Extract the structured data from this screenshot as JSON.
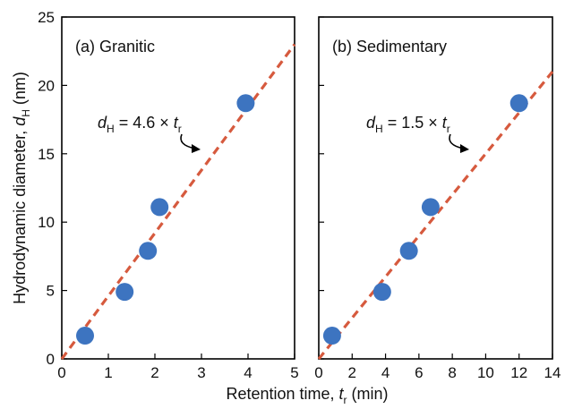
{
  "chart_data": [
    {
      "type": "scatter",
      "panel_label": "(a) Granitic",
      "x": [
        0.5,
        1.35,
        1.85,
        2.1,
        3.95
      ],
      "y": [
        1.7,
        4.9,
        7.9,
        11.1,
        18.7
      ],
      "xlim": [
        0,
        5
      ],
      "ylim": [
        0,
        25
      ],
      "xticks": [
        0,
        1,
        2,
        3,
        4,
        5
      ],
      "yticks": [
        0,
        5,
        10,
        15,
        20,
        25
      ],
      "fit": {
        "slope": 4.6,
        "equation_lhs": "d",
        "equation_lhs_sub": "H",
        "equation_mid": " = 4.6 × ",
        "equation_rhs": "t",
        "equation_rhs_sub": "r"
      },
      "colors": {
        "points": "#3d74c0",
        "fit_line": "#d65a3e"
      }
    },
    {
      "type": "scatter",
      "panel_label": "(b) Sedimentary",
      "x": [
        0.8,
        3.8,
        5.4,
        6.7,
        12.0
      ],
      "y": [
        1.7,
        4.9,
        7.9,
        11.1,
        18.7
      ],
      "xlim": [
        0,
        14
      ],
      "ylim": [
        0,
        25
      ],
      "xticks": [
        0,
        2,
        4,
        6,
        8,
        10,
        12,
        14
      ],
      "yticks": [],
      "fit": {
        "slope": 1.5,
        "equation_lhs": "d",
        "equation_lhs_sub": "H",
        "equation_mid": " = 1.5 × ",
        "equation_rhs": "t",
        "equation_rhs_sub": "r"
      },
      "colors": {
        "points": "#3d74c0",
        "fit_line": "#d65a3e"
      }
    }
  ],
  "axes": {
    "ylabel_main": "Hydrodynamic diameter, ",
    "ylabel_var": "d",
    "ylabel_sub": "H",
    "ylabel_unit": " (nm)",
    "xlabel_main": "Retention time, ",
    "xlabel_var": "t",
    "xlabel_sub": "r",
    "xlabel_unit": " (min)"
  }
}
